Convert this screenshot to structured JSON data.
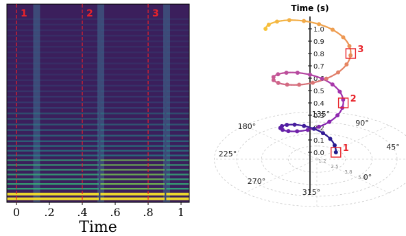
{
  "spectrogram": {
    "xlabel": "Time",
    "ticks": [
      {
        "v": 0.0,
        "label": "0"
      },
      {
        "v": 0.2,
        "label": ".2"
      },
      {
        "v": 0.4,
        "label": ".4"
      },
      {
        "v": 0.6,
        "label": ".6"
      },
      {
        "v": 0.8,
        "label": ".8"
      },
      {
        "v": 1.0,
        "label": "1"
      }
    ],
    "markers": [
      {
        "t": 0.0,
        "label": "1"
      },
      {
        "t": 0.4,
        "label": "2"
      },
      {
        "t": 0.8,
        "label": "3"
      }
    ],
    "onsets": [
      0.11,
      0.5,
      0.9
    ],
    "colors": {
      "background": "#3b1f5c",
      "marker": "#e8232a",
      "hot": "#f5e12a",
      "mid": "#35b779"
    }
  },
  "helix": {
    "axis_title": "Time (s)",
    "time_ticks": [
      "0.0",
      "0.1",
      "0.2",
      "0.3",
      "0.4",
      "0.5",
      "0.6",
      "0.7",
      "0.8",
      "0.9",
      "1.0"
    ],
    "angle_labels": [
      "0°",
      "45°",
      "90°",
      "135°",
      "180°",
      "225°",
      "270°",
      "315°"
    ],
    "radius_labels": [
      "1.2",
      "2.5",
      "3.8",
      "5.0"
    ],
    "markers": [
      {
        "t": 0.0,
        "label": "1"
      },
      {
        "t": 0.4,
        "label": "2"
      },
      {
        "t": 0.8,
        "label": "3"
      }
    ],
    "colormap": [
      "#1e1a8c",
      "#5a1ea6",
      "#9b2bb2",
      "#c95c93",
      "#ea8d5a",
      "#f7c33a"
    ],
    "marker_color": "#e8232a"
  }
}
